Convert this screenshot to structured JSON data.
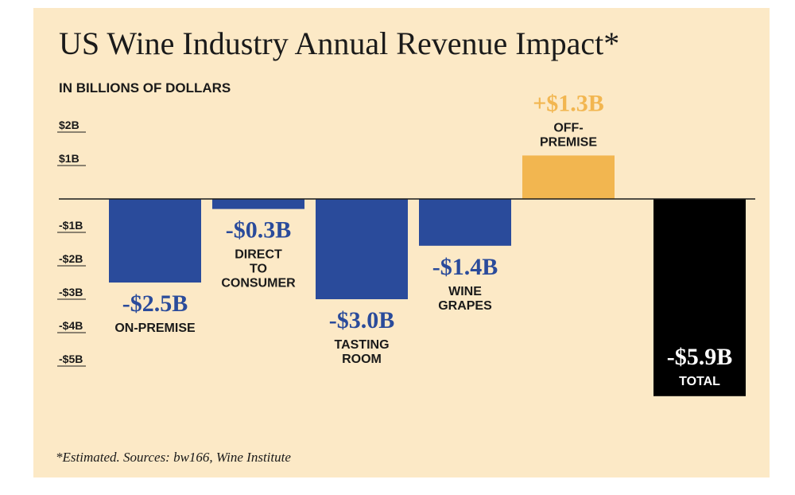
{
  "chart_data": {
    "type": "bar",
    "title": "US Wine Industry Annual Revenue Impact*",
    "subtitle": "IN BILLIONS OF DOLLARS",
    "categories": [
      "ON-PREMISE",
      "DIRECT\nTO\nCONSUMER",
      "TASTING\nROOM",
      "WINE\nGRAPES",
      "OFF-\nPREMISE",
      "TOTAL"
    ],
    "values": [
      -2.5,
      -0.3,
      -3.0,
      -1.4,
      1.3,
      -5.9
    ],
    "value_labels": [
      "-$2.5B",
      "-$0.3B",
      "-$3.0B",
      "-$1.4B",
      "+$1.3B",
      "-$5.9B"
    ],
    "colors": [
      "#2a4b9b",
      "#2a4b9b",
      "#2a4b9b",
      "#2a4b9b",
      "#f2b650",
      "#000000"
    ],
    "ylim": [
      -6,
      2.5
    ],
    "yticks": [
      {
        "value": 2,
        "label": "$2B"
      },
      {
        "value": 1,
        "label": "$1B"
      },
      {
        "value": -1,
        "label": "-$1B"
      },
      {
        "value": -2,
        "label": "-$2B"
      },
      {
        "value": -3,
        "label": "-$3B"
      },
      {
        "value": -4,
        "label": "-$4B"
      },
      {
        "value": -5,
        "label": "-$5B"
      }
    ],
    "footnote": "*Estimated. Sources: bw166, Wine Institute"
  }
}
